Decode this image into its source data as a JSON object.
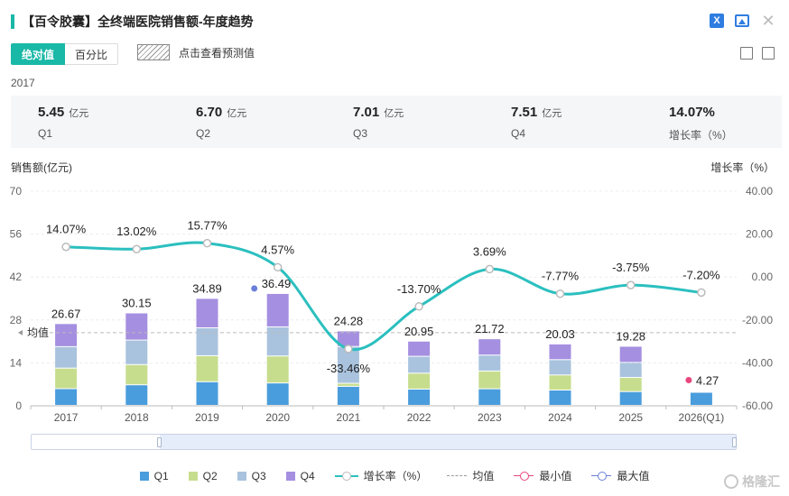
{
  "header": {
    "title": "【百令胶囊】全终端医院销售额-年度趋势"
  },
  "icons": {
    "excel": "excel-icon",
    "image": "image-icon",
    "close": "close-icon",
    "bar_chart": "bar-chart-icon",
    "document": "document-icon"
  },
  "toggle": {
    "absolute_label": "绝对值",
    "percent_label": "百分比",
    "active": "absolute"
  },
  "forecast": {
    "label": "点击查看预测值"
  },
  "summary": {
    "year": "2017",
    "unit": "亿元",
    "items": [
      {
        "value": "5.45",
        "unit": "亿元",
        "label": "Q1"
      },
      {
        "value": "6.70",
        "unit": "亿元",
        "label": "Q2"
      },
      {
        "value": "7.01",
        "unit": "亿元",
        "label": "Q3"
      },
      {
        "value": "7.51",
        "unit": "亿元",
        "label": "Q4"
      },
      {
        "value": "14.07%",
        "unit": "",
        "label": "增长率（%）"
      }
    ]
  },
  "colors": {
    "Q1": "#4a9ddc",
    "Q2": "#c7dd8e",
    "Q3": "#a9c3de",
    "Q4": "#a58fe0",
    "growth": "#2bbfbf",
    "accent": "#1ab8a7",
    "min": "#e8467c",
    "max": "#6a7fd8"
  },
  "chart_data": {
    "type": "bar",
    "stacked": true,
    "ylabel": "销售额(亿元)",
    "y2label": "增长率（%）",
    "ylim": [
      0,
      70
    ],
    "yticks": [
      "0",
      "14",
      "28",
      "42",
      "56",
      "70"
    ],
    "y2lim": [
      -60,
      40
    ],
    "y2ticks": [
      "-60.00",
      "-40.00",
      "-20.00",
      "0.00",
      "20.00",
      "40.00"
    ],
    "categories": [
      "2017",
      "2018",
      "2019",
      "2020",
      "2021",
      "2022",
      "2023",
      "2024",
      "2025",
      "2026(Q1)"
    ],
    "series": [
      {
        "name": "Q1",
        "values": [
          5.45,
          6.7,
          7.7,
          7.3,
          6.2,
          5.3,
          5.4,
          5.0,
          4.5,
          4.27
        ]
      },
      {
        "name": "Q2",
        "values": [
          6.7,
          6.6,
          8.5,
          8.8,
          1.0,
          5.2,
          5.8,
          4.9,
          4.6,
          0
        ]
      },
      {
        "name": "Q3",
        "values": [
          7.01,
          8.0,
          9.1,
          9.5,
          12.0,
          5.5,
          5.2,
          5.0,
          4.9,
          0
        ]
      },
      {
        "name": "Q4",
        "values": [
          7.51,
          8.85,
          9.59,
          10.89,
          5.08,
          4.95,
          5.32,
          5.13,
          5.28,
          0
        ]
      }
    ],
    "totals": [
      26.67,
      30.15,
      34.89,
      36.49,
      24.28,
      20.95,
      21.72,
      20.03,
      19.28,
      4.27
    ],
    "total_labels": [
      "26.67",
      "30.15",
      "34.89",
      "36.49",
      "24.28",
      "20.95",
      "21.72",
      "20.03",
      "19.28",
      "4.27"
    ],
    "growth": [
      14.07,
      13.02,
      15.77,
      4.57,
      -33.46,
      -13.7,
      3.69,
      -7.77,
      -3.75,
      -7.2
    ],
    "growth_labels": [
      "14.07%",
      "13.02%",
      "15.77%",
      "4.57%",
      "-33.46%",
      "-13.70%",
      "3.69%",
      "-7.77%",
      "-3.75%",
      "-7.20%"
    ],
    "mean_label": "均值",
    "mean_value": 23.87,
    "min_index": 9,
    "max_index": 3,
    "grid": true,
    "legend_position": "bottom",
    "legend": [
      "Q1",
      "Q2",
      "Q3",
      "Q4",
      "增长率（%）",
      "均值",
      "最小值",
      "最大值"
    ]
  },
  "watermark": "格隆汇"
}
